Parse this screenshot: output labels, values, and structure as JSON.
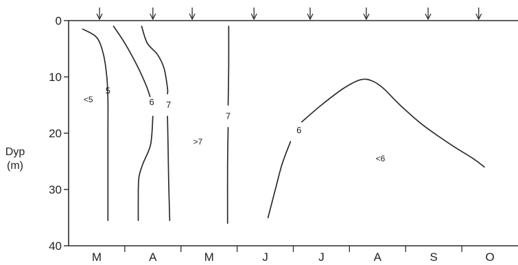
{
  "chart_data": {
    "type": "line",
    "title": "",
    "xlabel": "",
    "ylabel": "Dyp\n(m)",
    "ylabel_lines": [
      "Dyp",
      "(m)"
    ],
    "y_axis": {
      "inverted": true,
      "ylim": [
        0,
        40
      ],
      "ticks": [
        0,
        10,
        20,
        30,
        40
      ]
    },
    "x_axis": {
      "months": [
        "M",
        "A",
        "M",
        "J",
        "J",
        "A",
        "S",
        "O"
      ],
      "range_months": [
        0,
        8
      ]
    },
    "sampling_arrows_month": [
      0.55,
      1.5,
      2.2,
      3.3,
      4.3,
      5.3,
      6.4,
      7.3
    ],
    "series": [
      {
        "label": "5",
        "points": [
          [
            0.25,
            1.5
          ],
          [
            0.5,
            3
          ],
          [
            0.62,
            6
          ],
          [
            0.68,
            10
          ],
          [
            0.7,
            14
          ],
          [
            0.7,
            20
          ],
          [
            0.7,
            28
          ],
          [
            0.7,
            35.5
          ]
        ],
        "label_at": [
          0.7,
          12.5
        ]
      },
      {
        "label": "6",
        "points": [
          [
            0.8,
            1
          ],
          [
            1.0,
            4
          ],
          [
            1.22,
            8
          ],
          [
            1.38,
            11.5
          ],
          [
            1.45,
            13.5
          ]
        ],
        "label_at": [
          1.48,
          14.5
        ]
      },
      {
        "label": "6",
        "points": [
          [
            1.5,
            17
          ],
          [
            1.46,
            22
          ],
          [
            1.32,
            25.5
          ],
          [
            1.25,
            28
          ],
          [
            1.24,
            32
          ],
          [
            1.24,
            35.5
          ]
        ],
        "label_at": [
          1.48,
          14.5
        ]
      },
      {
        "label": "7",
        "points": [
          [
            1.3,
            1
          ],
          [
            1.4,
            4
          ],
          [
            1.58,
            6
          ],
          [
            1.7,
            8.5
          ],
          [
            1.76,
            12
          ],
          [
            1.76,
            13
          ]
        ],
        "label_at": [
          1.78,
          15
        ]
      },
      {
        "label": "7",
        "points": [
          [
            1.76,
            17
          ],
          [
            1.77,
            22
          ],
          [
            1.78,
            28
          ],
          [
            1.8,
            35.5
          ]
        ],
        "label_at": [
          1.78,
          15
        ]
      },
      {
        "label": "7",
        "points": [
          [
            2.85,
            1
          ],
          [
            2.85,
            8
          ],
          [
            2.84,
            15
          ]
        ],
        "label_at": [
          2.84,
          17
        ]
      },
      {
        "label": "7",
        "points": [
          [
            2.84,
            19
          ],
          [
            2.83,
            26
          ],
          [
            2.83,
            36
          ]
        ],
        "label_at": [
          2.84,
          17
        ]
      },
      {
        "label": "6",
        "points": [
          [
            3.55,
            35
          ],
          [
            3.68,
            30
          ],
          [
            3.8,
            25.5
          ],
          [
            3.95,
            21.5
          ]
        ],
        "label_at": [
          4.1,
          19.5
        ]
      },
      {
        "label": "6",
        "points": [
          [
            4.15,
            18
          ],
          [
            4.5,
            15
          ],
          [
            4.9,
            12
          ],
          [
            5.2,
            10.5
          ],
          [
            5.4,
            10.7
          ],
          [
            5.6,
            12
          ],
          [
            5.9,
            15
          ],
          [
            6.3,
            18.5
          ],
          [
            6.8,
            22
          ],
          [
            7.2,
            24.5
          ],
          [
            7.4,
            26
          ]
        ],
        "label_at": [
          4.1,
          19.5
        ]
      }
    ],
    "region_labels": [
      {
        "text": "<5",
        "at": [
          0.35,
          14
        ]
      },
      {
        "text": ">7",
        "at": [
          2.3,
          21.5
        ]
      },
      {
        "text": "<6",
        "at": [
          5.55,
          24.5
        ]
      }
    ],
    "grid": false,
    "legend": "none"
  }
}
